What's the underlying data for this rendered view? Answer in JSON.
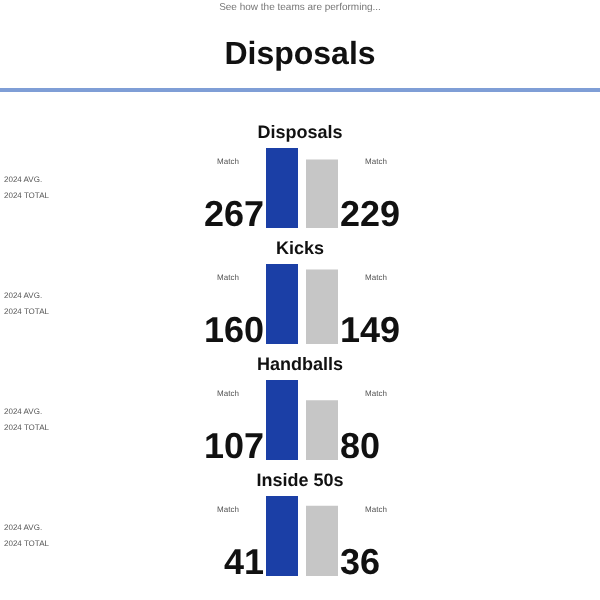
{
  "chart_data": [
    {
      "type": "other",
      "subtitle": "See how the teams are performing...",
      "title": "Disposals"
    },
    {
      "type": "bar",
      "title": "Disposals",
      "categories": [
        null,
        null
      ],
      "values": [
        267,
        229
      ],
      "colors": [
        "#1b3fa6",
        "#c6c6c6"
      ],
      "data_labels": true,
      "annotations": [
        "Match",
        "Match",
        "2024 AVG.",
        "2024 TOTAL"
      ]
    },
    {
      "type": "bar",
      "title": "Kicks",
      "categories": [
        null,
        null
      ],
      "values": [
        160,
        149
      ],
      "colors": [
        "#1b3fa6",
        "#c6c6c6"
      ],
      "data_labels": true,
      "annotations": [
        "Match",
        "Match",
        "2024 AVG.",
        "2024 TOTAL"
      ]
    },
    {
      "type": "bar",
      "title": "Handballs",
      "categories": [
        null,
        null
      ],
      "values": [
        107,
        80
      ],
      "colors": [
        "#1b3fa6",
        "#c6c6c6"
      ],
      "data_labels": true,
      "annotations": [
        "Match",
        "Match",
        "2024 AVG.",
        "2024 TOTAL"
      ]
    },
    {
      "type": "bar",
      "title": "Inside 50s",
      "categories": [
        null,
        null
      ],
      "values": [
        41,
        36
      ],
      "colors": [
        "#1b3fa6",
        "#c6c6c6"
      ],
      "data_labels": true,
      "annotations": [
        "Match",
        "Match",
        "2024 AVG.",
        "2024 TOTAL"
      ]
    }
  ]
}
